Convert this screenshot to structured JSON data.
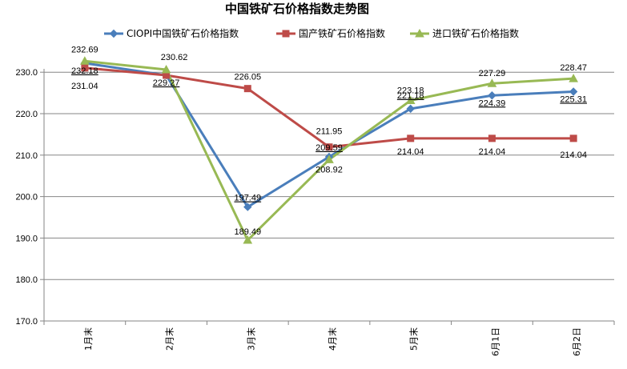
{
  "chart_data": {
    "type": "line",
    "title": "中国铁矿石价格指数走势图",
    "categories": [
      "1月末",
      "2月末",
      "3月末",
      "4月末",
      "5月末",
      "6月1日",
      "6月2日"
    ],
    "ylim": [
      170,
      230
    ],
    "yticks": [
      "170.0",
      "180.0",
      "190.0",
      "200.0",
      "210.0",
      "220.0",
      "230.0"
    ],
    "grid": true,
    "legend_position": "top",
    "series": [
      {
        "name": "CIOPI中国铁矿石价格指数",
        "color": "#4a7ebb",
        "marker": "diamond",
        "values": [
          232.18,
          229.27,
          197.49,
          209.59,
          221.18,
          224.39,
          225.31
        ],
        "labels": [
          "232.18",
          "229.27",
          "197.49",
          "209.59",
          "221.18",
          "224.39",
          "225.31"
        ]
      },
      {
        "name": "国产铁矿石价格指数",
        "color": "#be4b48",
        "marker": "square",
        "values": [
          231.04,
          229.27,
          226.05,
          211.95,
          214.04,
          214.04,
          214.04
        ],
        "labels": [
          "231.04",
          "",
          "226.05",
          "211.95",
          "214.04",
          "214.04",
          "214.04"
        ]
      },
      {
        "name": "进口铁矿石价格指数",
        "color": "#98b954",
        "marker": "triangle",
        "values": [
          232.69,
          230.62,
          189.49,
          208.92,
          223.18,
          227.29,
          228.47
        ],
        "labels": [
          "232.69",
          "230.62",
          "189.49",
          "208.92",
          "223.18",
          "227.29",
          "228.47"
        ]
      }
    ]
  }
}
